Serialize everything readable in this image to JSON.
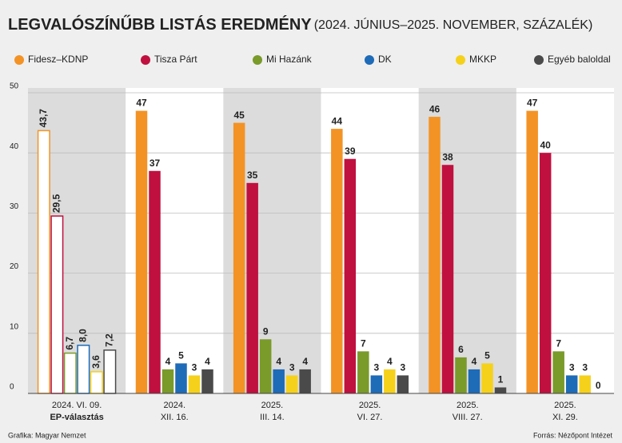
{
  "chart_data": {
    "type": "bar",
    "title": "LEGVALÓSZÍNŰBB LISTÁS EREDMÉNY",
    "subtitle": "(2024. JÚNIUS–2025. NOVEMBER, SZÁZALÉK)",
    "categories": [
      [
        "2024. VI. 09.",
        "EP-választás"
      ],
      [
        "2024.",
        "XII. 16."
      ],
      [
        "2025.",
        "III. 14."
      ],
      [
        "2025.",
        "VI. 27."
      ],
      [
        "2025.",
        "VIII. 27."
      ],
      [
        "2025.",
        "XI. 29."
      ]
    ],
    "hollow_categories": [
      0
    ],
    "series": [
      {
        "name": "Fidesz–KDNP",
        "color": "#f39325",
        "values": [
          43.7,
          47,
          45,
          44,
          46,
          47
        ],
        "value_labels": [
          "43,7",
          "47",
          "45",
          "44",
          "46",
          "47"
        ]
      },
      {
        "name": "Tisza Párt",
        "color": "#c0103f",
        "values": [
          29.5,
          37,
          35,
          39,
          38,
          40
        ],
        "value_labels": [
          "29,5",
          "37",
          "35",
          "39",
          "38",
          "40"
        ]
      },
      {
        "name": "Mi Hazánk",
        "color": "#7a9a2a",
        "values": [
          6.7,
          4,
          9,
          7,
          6,
          7
        ],
        "value_labels": [
          "6,7",
          "4",
          "9",
          "7",
          "6",
          "7"
        ]
      },
      {
        "name": "DK",
        "color": "#1e6bb8",
        "values": [
          8,
          5,
          4,
          3,
          4,
          3
        ],
        "value_labels": [
          "8,0",
          "5",
          "4",
          "3",
          "4",
          "3"
        ]
      },
      {
        "name": "MKKP",
        "color": "#f5d11b",
        "values": [
          3.6,
          3,
          3,
          4,
          5,
          3
        ],
        "value_labels": [
          "3,6",
          "3",
          "3",
          "4",
          "5",
          "3"
        ]
      },
      {
        "name": "Egyéb baloldal",
        "color": "#4a4a4a",
        "values": [
          7.2,
          4,
          4,
          3,
          1,
          0
        ],
        "value_labels": [
          "7,2",
          "4",
          "4",
          "3",
          "1",
          "0"
        ]
      }
    ],
    "ylim": [
      0,
      50
    ],
    "yticks": [
      0,
      10,
      20,
      30,
      40,
      50
    ],
    "grid": true,
    "credit": "Grafika: Magyar Nemzet",
    "source": "Forrás: Nézőpont Intézet"
  }
}
